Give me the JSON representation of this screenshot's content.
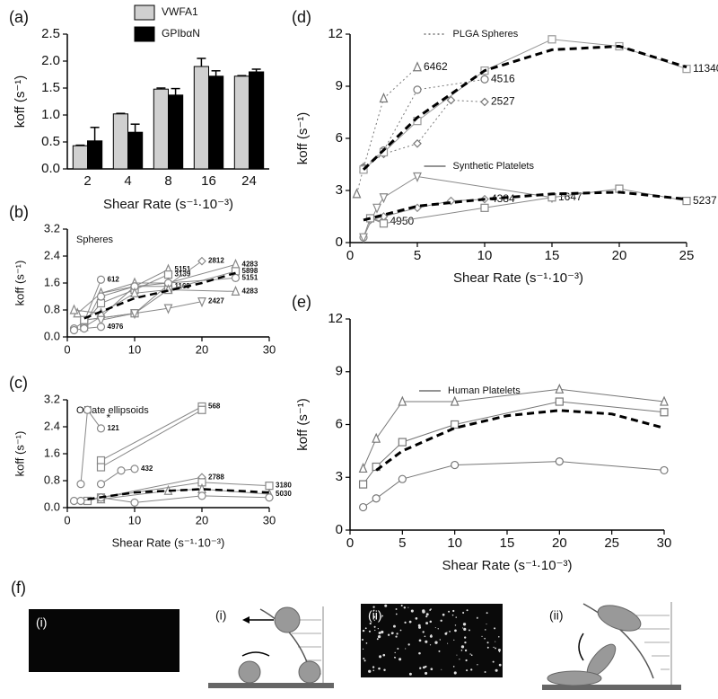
{
  "chart_data": [
    {
      "type": "bar",
      "panel": "(a)",
      "xlabel": "Shear Rate (s⁻¹·10⁻³)",
      "ylabel": "koff (s⁻¹)",
      "categories": [
        "2",
        "4",
        "8",
        "16",
        "24"
      ],
      "series": [
        {
          "name": "VWFA1",
          "color": "#d0d0d0",
          "values": [
            0.43,
            1.02,
            1.48,
            1.9,
            1.72
          ],
          "errors": [
            0.01,
            0.01,
            0.02,
            0.15,
            0.01
          ]
        },
        {
          "name": "GPIbαN",
          "color": "#000000",
          "values": [
            0.52,
            0.68,
            1.37,
            1.72,
            1.8
          ],
          "errors": [
            0.25,
            0.15,
            0.12,
            0.1,
            0.05
          ]
        }
      ],
      "ylim": [
        0,
        2.5
      ],
      "yticks": [
        {
          "value": 0,
          "label": "0.0"
        },
        0.5,
        {
          "value": 1,
          "label": "1.0"
        },
        1.5,
        {
          "value": 2,
          "label": "2.0"
        },
        2.5
      ]
    },
    {
      "type": "line",
      "panel": "(b)",
      "note": "Spheres",
      "ylabel": "koff (s⁻¹)",
      "xlim": [
        0,
        30
      ],
      "xticks": [
        0,
        10,
        20,
        30
      ],
      "ylim": [
        0,
        3.2
      ],
      "yticks": [
        {
          "value": 0,
          "label": "0.0"
        },
        0.8,
        1.6,
        2.4,
        3.2
      ],
      "series": [
        {
          "name": "612",
          "x": [
            1,
            2.5,
            5
          ],
          "values": [
            0.25,
            0.45,
            1.7
          ],
          "color": "#888888",
          "marker": "circle",
          "dash": "solid"
        },
        {
          "name": "5151",
          "x": [
            1.5,
            5,
            10,
            15
          ],
          "values": [
            0.7,
            1.3,
            1.5,
            2.0
          ],
          "color": "#888888",
          "marker": "triangle",
          "dash": "solid"
        },
        {
          "name": "3139",
          "x": [
            2.5,
            5,
            10,
            15
          ],
          "values": [
            0.4,
            1.0,
            1.4,
            1.85
          ],
          "color": "#888888",
          "marker": "square",
          "dash": "solid"
        },
        {
          "name": "1169",
          "x": [
            2.5,
            5,
            10,
            15
          ],
          "values": [
            0.3,
            0.6,
            1.5,
            1.5
          ],
          "color": "#888888",
          "marker": "circle",
          "dash": "solid"
        },
        {
          "name": "2812",
          "x": [
            2.5,
            10,
            15,
            20
          ],
          "values": [
            0.5,
            0.7,
            1.55,
            2.25
          ],
          "color": "#888888",
          "marker": "diamond",
          "dash": "solid"
        },
        {
          "name": "4283",
          "x": [
            2.5,
            5,
            10,
            15,
            25
          ],
          "values": [
            0.3,
            1.3,
            1.6,
            1.6,
            2.15
          ],
          "color": "#888888",
          "marker": "triangle",
          "dash": "solid"
        },
        {
          "name": "5898",
          "x": [
            2.5,
            10,
            15,
            25
          ],
          "values": [
            0.5,
            0.7,
            1.4,
            1.95
          ],
          "color": "#888888",
          "marker": "square",
          "dash": "solid"
        },
        {
          "name": "5151",
          "x": [
            5,
            10,
            15,
            25
          ],
          "values": [
            1.2,
            1.5,
            1.6,
            1.75
          ],
          "color": "#888888",
          "marker": "circle",
          "dash": "solid"
        },
        {
          "name": "4283",
          "x": [
            1,
            5,
            10,
            15,
            25
          ],
          "values": [
            0.8,
            0.7,
            1.3,
            1.4,
            1.35
          ],
          "color": "#888888",
          "marker": "triangle",
          "dash": "solid"
        },
        {
          "name": "2427",
          "x": [
            5,
            10,
            15,
            20
          ],
          "values": [
            0.5,
            0.7,
            0.85,
            1.05
          ],
          "color": "#888888",
          "marker": "tri-down",
          "dash": "solid"
        },
        {
          "name": "4976",
          "x": [
            1,
            2.5,
            5
          ],
          "values": [
            0.2,
            0.25,
            0.3
          ],
          "color": "#888888",
          "marker": "circle",
          "dash": "solid"
        },
        {
          "x": [
            2.5,
            10,
            20,
            25
          ],
          "values": [
            0.55,
            1.15,
            1.6,
            1.9
          ],
          "color": "#000000",
          "dash": "dashed",
          "width": 2.5
        }
      ]
    },
    {
      "type": "line",
      "panel": "(c)",
      "note": "Oblate ellipsoids",
      "annotation": "*",
      "xlabel": "Shear Rate (s⁻¹·10⁻³)",
      "ylabel": "koff (s⁻¹)",
      "xlim": [
        0,
        30
      ],
      "xticks": [
        0,
        10,
        20,
        30
      ],
      "ylim": [
        0,
        3.2
      ],
      "yticks": [
        {
          "value": 0,
          "label": "0.0"
        },
        0.8,
        1.6,
        2.4,
        3.2
      ],
      "series": [
        {
          "name": "568",
          "x": [
            5,
            20
          ],
          "values": [
            1.4,
            3.0
          ],
          "color": "#888888",
          "marker": "square",
          "dash": "solid"
        },
        {
          "x": [
            5,
            20
          ],
          "values": [
            1.2,
            2.9
          ],
          "color": "#888888",
          "marker": "square",
          "dash": "solid"
        },
        {
          "name": "121",
          "x": [
            2,
            3,
            5
          ],
          "values": [
            0.7,
            2.9,
            2.35
          ],
          "color": "#888888",
          "marker": "circle",
          "dash": "solid"
        },
        {
          "name": "432",
          "x": [
            5,
            8,
            10
          ],
          "values": [
            0.7,
            1.1,
            1.15
          ],
          "color": "#888888",
          "marker": "circle",
          "dash": "solid"
        },
        {
          "name": "2788",
          "x": [
            5,
            20
          ],
          "values": [
            0.3,
            0.9
          ],
          "color": "#888888",
          "marker": "diamond",
          "dash": "solid"
        },
        {
          "name": "3180",
          "x": [
            3,
            5,
            20,
            30
          ],
          "values": [
            0.2,
            0.3,
            0.75,
            0.65
          ],
          "color": "#888888",
          "marker": "square",
          "dash": "solid"
        },
        {
          "name": "5030",
          "x": [
            5,
            15,
            20,
            30
          ],
          "values": [
            0.25,
            0.5,
            0.55,
            0.4
          ],
          "color": "#888888",
          "marker": "triangle",
          "dash": "solid"
        },
        {
          "x": [
            1,
            2,
            5,
            10,
            20,
            30
          ],
          "values": [
            0.2,
            0.2,
            0.3,
            0.15,
            0.35,
            0.3
          ],
          "color": "#888888",
          "marker": "circle",
          "dash": "solid"
        },
        {
          "x": [
            3,
            10,
            20,
            30
          ],
          "values": [
            0.25,
            0.45,
            0.55,
            0.45
          ],
          "color": "#000000",
          "dash": "dashed",
          "width": 2.5
        }
      ]
    },
    {
      "type": "line",
      "panel": "(d)",
      "xlabel": "Shear Rate (s⁻¹·10⁻³)",
      "ylabel": "koff (s⁻¹)",
      "keys": [
        {
          "name": "PLGA Spheres",
          "dash": "dotted"
        },
        {
          "name": "Synthetic Platelets",
          "dash": "solid"
        }
      ],
      "xlim": [
        0,
        25
      ],
      "xticks": [
        0,
        5,
        10,
        15,
        20,
        25
      ],
      "ylim": [
        0,
        12
      ],
      "yticks": [
        0,
        3,
        6,
        9,
        12
      ],
      "series": [
        {
          "name": "6462",
          "x": [
            0.5,
            1,
            2.5,
            5
          ],
          "values": [
            2.8,
            4.3,
            8.3,
            10.1
          ],
          "color": "#777777",
          "marker": "triangle",
          "dash": "dotted"
        },
        {
          "name": "4516",
          "x": [
            1,
            2.5,
            5,
            10
          ],
          "values": [
            4.3,
            5.3,
            8.8,
            9.4
          ],
          "color": "#777777",
          "marker": "circle",
          "dash": "dotted"
        },
        {
          "name": "2527",
          "x": [
            1,
            2.5,
            5,
            7.5,
            10
          ],
          "values": [
            4.3,
            5.1,
            5.7,
            8.2,
            8.1
          ],
          "color": "#777777",
          "marker": "diamond",
          "dash": "dotted"
        },
        {
          "name": "11340",
          "x": [
            1,
            2.5,
            5,
            10,
            15,
            20,
            25
          ],
          "values": [
            4.2,
            5.2,
            7.0,
            9.9,
            11.7,
            11.3,
            10.0
          ],
          "color": "#999999",
          "marker": "square",
          "dash": "solid"
        },
        {
          "x": [
            1,
            5,
            10,
            15,
            20,
            25
          ],
          "values": [
            4.2,
            7.2,
            9.9,
            11.1,
            11.3,
            10.1
          ],
          "color": "#000000",
          "dash": "dashed",
          "width": 3
        },
        {
          "name": "4950",
          "x": [
            1,
            1.5,
            2.5
          ],
          "values": [
            0.3,
            1.4,
            1.2
          ],
          "color": "#888888",
          "marker": "circle",
          "dash": "solid"
        },
        {
          "name": "1647",
          "x": [
            1,
            2,
            2.5,
            5,
            15
          ],
          "values": [
            0.3,
            2.0,
            2.6,
            3.8,
            2.6
          ],
          "color": "#888888",
          "marker": "tri-down",
          "dash": "solid"
        },
        {
          "name": "4384",
          "x": [
            1.5,
            2.5,
            5,
            7.5,
            10
          ],
          "values": [
            1.3,
            1.5,
            2.0,
            2.4,
            2.5
          ],
          "color": "#888888",
          "marker": "diamond",
          "dash": "solid"
        },
        {
          "name": "5237",
          "x": [
            1.5,
            2.5,
            10,
            15,
            20,
            25
          ],
          "values": [
            1.4,
            1.1,
            2.0,
            2.6,
            3.1,
            2.4
          ],
          "color": "#888888",
          "marker": "square",
          "dash": "solid"
        },
        {
          "x": [
            1,
            5,
            10,
            15,
            20,
            25
          ],
          "values": [
            1.3,
            2.1,
            2.5,
            2.8,
            2.9,
            2.5
          ],
          "color": "#000000",
          "dash": "dashed",
          "width": 3
        }
      ]
    },
    {
      "type": "line",
      "panel": "(e)",
      "xlabel": "Shear Rate (s⁻¹·10⁻³)",
      "ylabel": "koff (s⁻¹)",
      "keys": [
        {
          "name": "Human Platelets",
          "dash": "solid"
        }
      ],
      "xlim": [
        0,
        30
      ],
      "xticks": [
        0,
        5,
        10,
        15,
        20,
        25,
        30
      ],
      "ylim": [
        0,
        12
      ],
      "yticks": [
        0,
        3,
        6,
        9,
        12
      ],
      "series": [
        {
          "x": [
            1.25,
            2.5,
            5,
            10,
            20,
            30
          ],
          "values": [
            3.5,
            5.2,
            7.3,
            7.3,
            8.0,
            7.3
          ],
          "color": "#777777",
          "marker": "triangle",
          "dash": "solid"
        },
        {
          "x": [
            1.25,
            2.5,
            5,
            10,
            20,
            30
          ],
          "values": [
            2.6,
            3.6,
            5.0,
            6.0,
            7.3,
            6.7
          ],
          "color": "#777777",
          "marker": "square",
          "dash": "solid"
        },
        {
          "x": [
            1.25,
            2.5,
            5,
            10,
            20,
            30
          ],
          "values": [
            1.3,
            1.8,
            2.9,
            3.7,
            3.9,
            3.4
          ],
          "color": "#777777",
          "marker": "circle",
          "dash": "solid"
        },
        {
          "x": [
            2.5,
            5,
            10,
            15,
            20,
            25,
            30
          ],
          "values": [
            3.4,
            4.5,
            5.8,
            6.5,
            6.8,
            6.6,
            5.8
          ],
          "color": "#000000",
          "dash": "dashed",
          "width": 3
        }
      ]
    }
  ],
  "panel_f": {
    "label": "(f)",
    "images": [
      "(i)",
      "(i)",
      "(ii)",
      "(ii)"
    ]
  }
}
